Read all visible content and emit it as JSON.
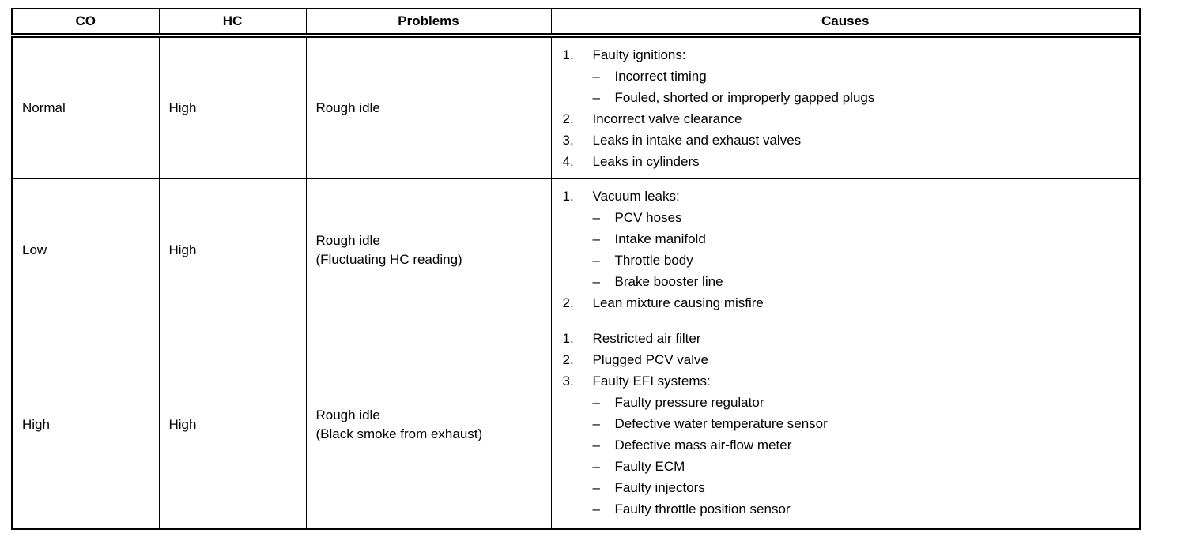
{
  "table": {
    "columns": [
      "CO",
      "HC",
      "Problems",
      "Causes"
    ],
    "rows": [
      {
        "co": "Normal",
        "hc": "High",
        "problem": [
          "Rough idle"
        ],
        "causes": [
          {
            "indent": 0,
            "marker": "1.",
            "text": "Faulty ignitions:"
          },
          {
            "indent": 1,
            "marker": "–",
            "text": "Incorrect timing"
          },
          {
            "indent": 1,
            "marker": "–",
            "text": "Fouled, shorted or improperly gapped plugs"
          },
          {
            "indent": 0,
            "marker": "2.",
            "text": "Incorrect valve clearance"
          },
          {
            "indent": 0,
            "marker": "3.",
            "text": "Leaks in intake and exhaust valves"
          },
          {
            "indent": 0,
            "marker": "4.",
            "text": "Leaks in cylinders"
          }
        ]
      },
      {
        "co": "Low",
        "hc": "High",
        "problem": [
          "Rough idle",
          "(Fluctuating HC reading)"
        ],
        "causes": [
          {
            "indent": 0,
            "marker": "1.",
            "text": "Vacuum leaks:"
          },
          {
            "indent": 1,
            "marker": "–",
            "text": "PCV hoses"
          },
          {
            "indent": 1,
            "marker": "–",
            "text": "Intake manifold"
          },
          {
            "indent": 1,
            "marker": "–",
            "text": "Throttle body"
          },
          {
            "indent": 1,
            "marker": "–",
            "text": "Brake booster line"
          },
          {
            "indent": 0,
            "marker": "2.",
            "text": "Lean mixture causing misfire"
          }
        ]
      },
      {
        "co": "High",
        "hc": "High",
        "problem": [
          "Rough idle",
          "(Black smoke from exhaust)"
        ],
        "causes": [
          {
            "indent": 0,
            "marker": "1.",
            "text": "Restricted air filter"
          },
          {
            "indent": 0,
            "marker": "2.",
            "text": "Plugged PCV valve"
          },
          {
            "indent": 0,
            "marker": "3.",
            "text": "Faulty EFI systems:"
          },
          {
            "indent": 1,
            "marker": "–",
            "text": "Faulty pressure regulator"
          },
          {
            "indent": 1,
            "marker": "–",
            "text": "Defective water temperature sensor"
          },
          {
            "indent": 1,
            "marker": "–",
            "text": "Defective mass air-flow meter"
          },
          {
            "indent": 1,
            "marker": "–",
            "text": "Faulty ECM"
          },
          {
            "indent": 1,
            "marker": "–",
            "text": "Faulty injectors"
          },
          {
            "indent": 1,
            "marker": "–",
            "text": "Faulty throttle position sensor"
          }
        ]
      }
    ]
  }
}
